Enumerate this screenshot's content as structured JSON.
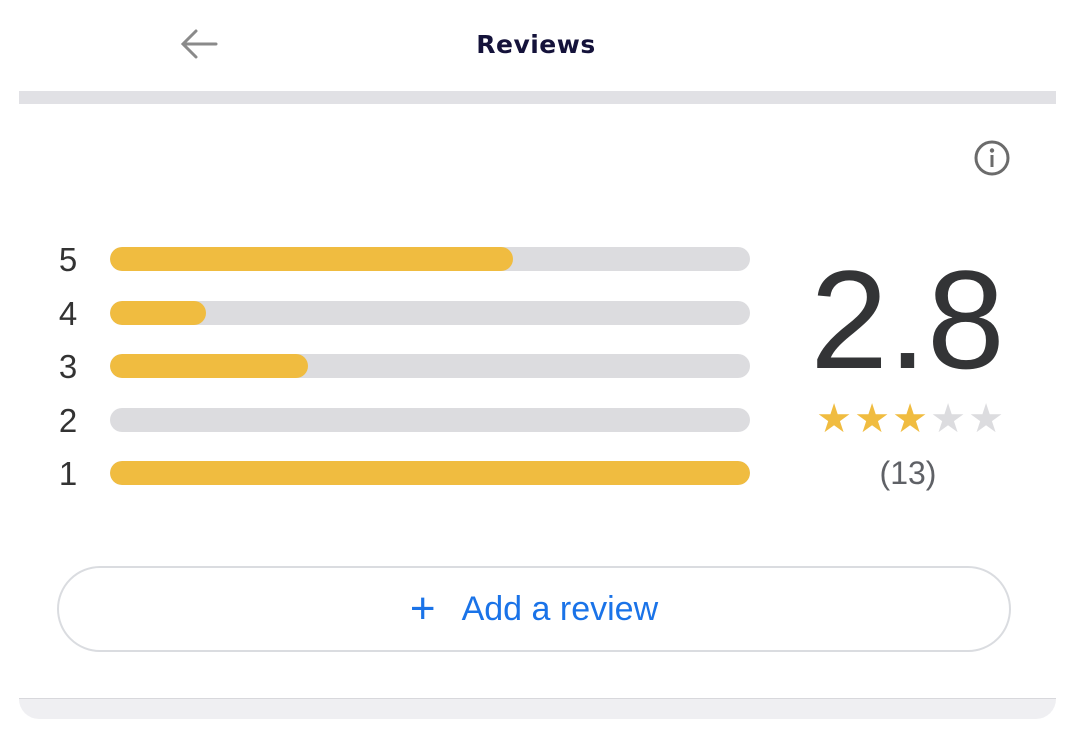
{
  "header": {
    "title": "Reviews",
    "back_icon": "arrow-left-icon"
  },
  "info_icon": "info-icon",
  "distribution": [
    {
      "stars": "5",
      "fraction": 0.63
    },
    {
      "stars": "4",
      "fraction": 0.15
    },
    {
      "stars": "3",
      "fraction": 0.31
    },
    {
      "stars": "2",
      "fraction": 0
    },
    {
      "stars": "1",
      "fraction": 1.0
    }
  ],
  "summary": {
    "average": "2.8",
    "star_rating": 3,
    "max_stars": 5,
    "count": "(13)"
  },
  "add_review": {
    "icon": "plus-icon",
    "label": "Add a review"
  },
  "colors": {
    "accent": "#f0bc40",
    "track": "#dcdcdf",
    "link": "#1a73e8",
    "star_empty": "#dcdcdf"
  }
}
